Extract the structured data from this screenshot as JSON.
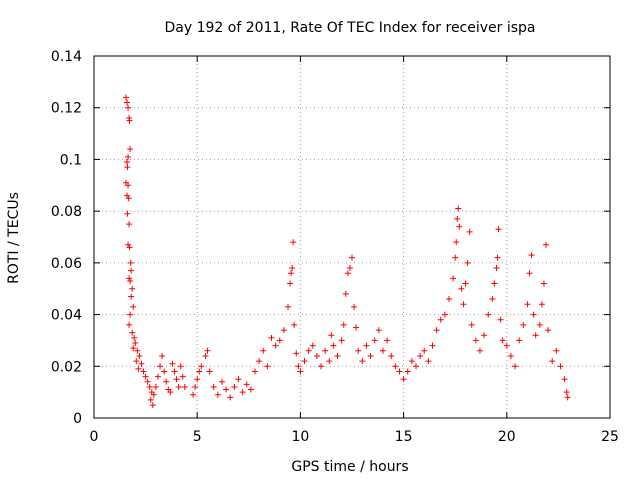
{
  "chart_data": {
    "type": "scatter",
    "title": "Day 192 of 2011, Rate Of TEC Index for receiver ispa",
    "xlabel": "GPS time / hours",
    "ylabel": "ROTI / TECUs",
    "xlim": [
      0,
      25
    ],
    "ylim": [
      0,
      0.14
    ],
    "x_ticks": [
      0,
      5,
      10,
      15,
      20,
      25
    ],
    "x_tick_labels": [
      "0",
      "5",
      "10",
      "15",
      "20",
      "25"
    ],
    "y_ticks": [
      0,
      0.02,
      0.04,
      0.06,
      0.08,
      0.1,
      0.12,
      0.14
    ],
    "y_tick_labels": [
      "0",
      "0.02",
      "0.04",
      "0.06",
      "0.08",
      "0.1",
      "0.12",
      "0.14"
    ],
    "grid": true,
    "marker": "+",
    "color": "#ff0000",
    "series": [
      {
        "name": "ROTI",
        "points": [
          [
            1.55,
            0.124
          ],
          [
            1.6,
            0.122
          ],
          [
            1.65,
            0.12
          ],
          [
            1.7,
            0.116
          ],
          [
            1.72,
            0.115
          ],
          [
            1.75,
            0.104
          ],
          [
            1.65,
            0.101
          ],
          [
            1.6,
            0.099
          ],
          [
            1.62,
            0.097
          ],
          [
            1.55,
            0.091
          ],
          [
            1.65,
            0.09
          ],
          [
            1.6,
            0.086
          ],
          [
            1.68,
            0.085
          ],
          [
            1.62,
            0.079
          ],
          [
            1.7,
            0.075
          ],
          [
            1.65,
            0.067
          ],
          [
            1.72,
            0.066
          ],
          [
            1.78,
            0.06
          ],
          [
            1.8,
            0.057
          ],
          [
            1.7,
            0.054
          ],
          [
            1.75,
            0.053
          ],
          [
            1.85,
            0.05
          ],
          [
            1.8,
            0.047
          ],
          [
            1.9,
            0.043
          ],
          [
            1.75,
            0.04
          ],
          [
            1.7,
            0.036
          ],
          [
            1.85,
            0.033
          ],
          [
            1.95,
            0.031
          ],
          [
            2.0,
            0.029
          ],
          [
            1.9,
            0.027
          ],
          [
            2.1,
            0.026
          ],
          [
            2.2,
            0.024
          ],
          [
            2.05,
            0.022
          ],
          [
            2.3,
            0.021
          ],
          [
            2.15,
            0.019
          ],
          [
            2.4,
            0.018
          ],
          [
            2.5,
            0.016
          ],
          [
            2.6,
            0.014
          ],
          [
            2.7,
            0.012
          ],
          [
            2.8,
            0.01
          ],
          [
            2.9,
            0.009
          ],
          [
            2.75,
            0.007
          ],
          [
            2.85,
            0.005
          ],
          [
            3.0,
            0.012
          ],
          [
            3.1,
            0.016
          ],
          [
            3.2,
            0.02
          ],
          [
            3.3,
            0.024
          ],
          [
            3.4,
            0.018
          ],
          [
            3.5,
            0.014
          ],
          [
            3.6,
            0.011
          ],
          [
            3.7,
            0.01
          ],
          [
            3.8,
            0.021
          ],
          [
            3.9,
            0.018
          ],
          [
            4.0,
            0.015
          ],
          [
            4.1,
            0.012
          ],
          [
            4.2,
            0.02
          ],
          [
            4.3,
            0.016
          ],
          [
            4.4,
            0.012
          ],
          [
            4.8,
            0.009
          ],
          [
            4.9,
            0.012
          ],
          [
            5.0,
            0.015
          ],
          [
            5.1,
            0.018
          ],
          [
            5.2,
            0.02
          ],
          [
            5.4,
            0.024
          ],
          [
            5.5,
            0.026
          ],
          [
            5.6,
            0.018
          ],
          [
            5.8,
            0.012
          ],
          [
            6.0,
            0.009
          ],
          [
            6.2,
            0.014
          ],
          [
            6.4,
            0.011
          ],
          [
            6.6,
            0.008
          ],
          [
            6.8,
            0.012
          ],
          [
            7.0,
            0.015
          ],
          [
            7.2,
            0.01
          ],
          [
            7.4,
            0.013
          ],
          [
            7.6,
            0.011
          ],
          [
            7.8,
            0.018
          ],
          [
            8.0,
            0.022
          ],
          [
            8.2,
            0.026
          ],
          [
            8.4,
            0.02
          ],
          [
            8.6,
            0.031
          ],
          [
            8.8,
            0.028
          ],
          [
            9.0,
            0.03
          ],
          [
            9.2,
            0.034
          ],
          [
            9.4,
            0.043
          ],
          [
            9.5,
            0.052
          ],
          [
            9.55,
            0.056
          ],
          [
            9.6,
            0.058
          ],
          [
            9.65,
            0.068
          ],
          [
            9.7,
            0.036
          ],
          [
            9.8,
            0.025
          ],
          [
            9.9,
            0.02
          ],
          [
            10.0,
            0.018
          ],
          [
            10.2,
            0.022
          ],
          [
            10.4,
            0.026
          ],
          [
            10.6,
            0.028
          ],
          [
            10.8,
            0.024
          ],
          [
            11.0,
            0.02
          ],
          [
            11.2,
            0.026
          ],
          [
            11.4,
            0.022
          ],
          [
            11.5,
            0.032
          ],
          [
            11.6,
            0.028
          ],
          [
            11.8,
            0.024
          ],
          [
            12.0,
            0.03
          ],
          [
            12.1,
            0.036
          ],
          [
            12.2,
            0.048
          ],
          [
            12.3,
            0.056
          ],
          [
            12.4,
            0.058
          ],
          [
            12.5,
            0.062
          ],
          [
            12.6,
            0.043
          ],
          [
            12.7,
            0.035
          ],
          [
            12.8,
            0.026
          ],
          [
            13.0,
            0.022
          ],
          [
            13.2,
            0.028
          ],
          [
            13.4,
            0.024
          ],
          [
            13.6,
            0.03
          ],
          [
            13.8,
            0.034
          ],
          [
            14.0,
            0.026
          ],
          [
            14.2,
            0.03
          ],
          [
            14.4,
            0.024
          ],
          [
            14.6,
            0.02
          ],
          [
            14.8,
            0.018
          ],
          [
            15.0,
            0.015
          ],
          [
            15.2,
            0.018
          ],
          [
            15.4,
            0.022
          ],
          [
            15.6,
            0.02
          ],
          [
            15.8,
            0.024
          ],
          [
            16.0,
            0.026
          ],
          [
            16.2,
            0.022
          ],
          [
            16.4,
            0.028
          ],
          [
            16.6,
            0.034
          ],
          [
            16.8,
            0.038
          ],
          [
            17.0,
            0.04
          ],
          [
            17.2,
            0.046
          ],
          [
            17.4,
            0.054
          ],
          [
            17.5,
            0.062
          ],
          [
            17.55,
            0.068
          ],
          [
            17.6,
            0.077
          ],
          [
            17.65,
            0.081
          ],
          [
            17.7,
            0.074
          ],
          [
            17.8,
            0.05
          ],
          [
            17.9,
            0.044
          ],
          [
            18.0,
            0.052
          ],
          [
            18.1,
            0.06
          ],
          [
            18.2,
            0.072
          ],
          [
            18.3,
            0.036
          ],
          [
            18.5,
            0.03
          ],
          [
            18.7,
            0.026
          ],
          [
            18.9,
            0.032
          ],
          [
            19.1,
            0.04
          ],
          [
            19.3,
            0.046
          ],
          [
            19.4,
            0.052
          ],
          [
            19.5,
            0.058
          ],
          [
            19.55,
            0.062
          ],
          [
            19.6,
            0.073
          ],
          [
            19.7,
            0.038
          ],
          [
            19.8,
            0.03
          ],
          [
            20.0,
            0.028
          ],
          [
            20.2,
            0.024
          ],
          [
            20.4,
            0.02
          ],
          [
            20.6,
            0.03
          ],
          [
            20.8,
            0.036
          ],
          [
            21.0,
            0.044
          ],
          [
            21.1,
            0.056
          ],
          [
            21.2,
            0.063
          ],
          [
            21.3,
            0.04
          ],
          [
            21.4,
            0.032
          ],
          [
            21.6,
            0.036
          ],
          [
            21.7,
            0.044
          ],
          [
            21.8,
            0.052
          ],
          [
            21.9,
            0.067
          ],
          [
            22.0,
            0.034
          ],
          [
            22.2,
            0.022
          ],
          [
            22.4,
            0.026
          ],
          [
            22.6,
            0.02
          ],
          [
            22.8,
            0.015
          ],
          [
            22.9,
            0.01
          ],
          [
            22.95,
            0.008
          ]
        ]
      }
    ]
  }
}
